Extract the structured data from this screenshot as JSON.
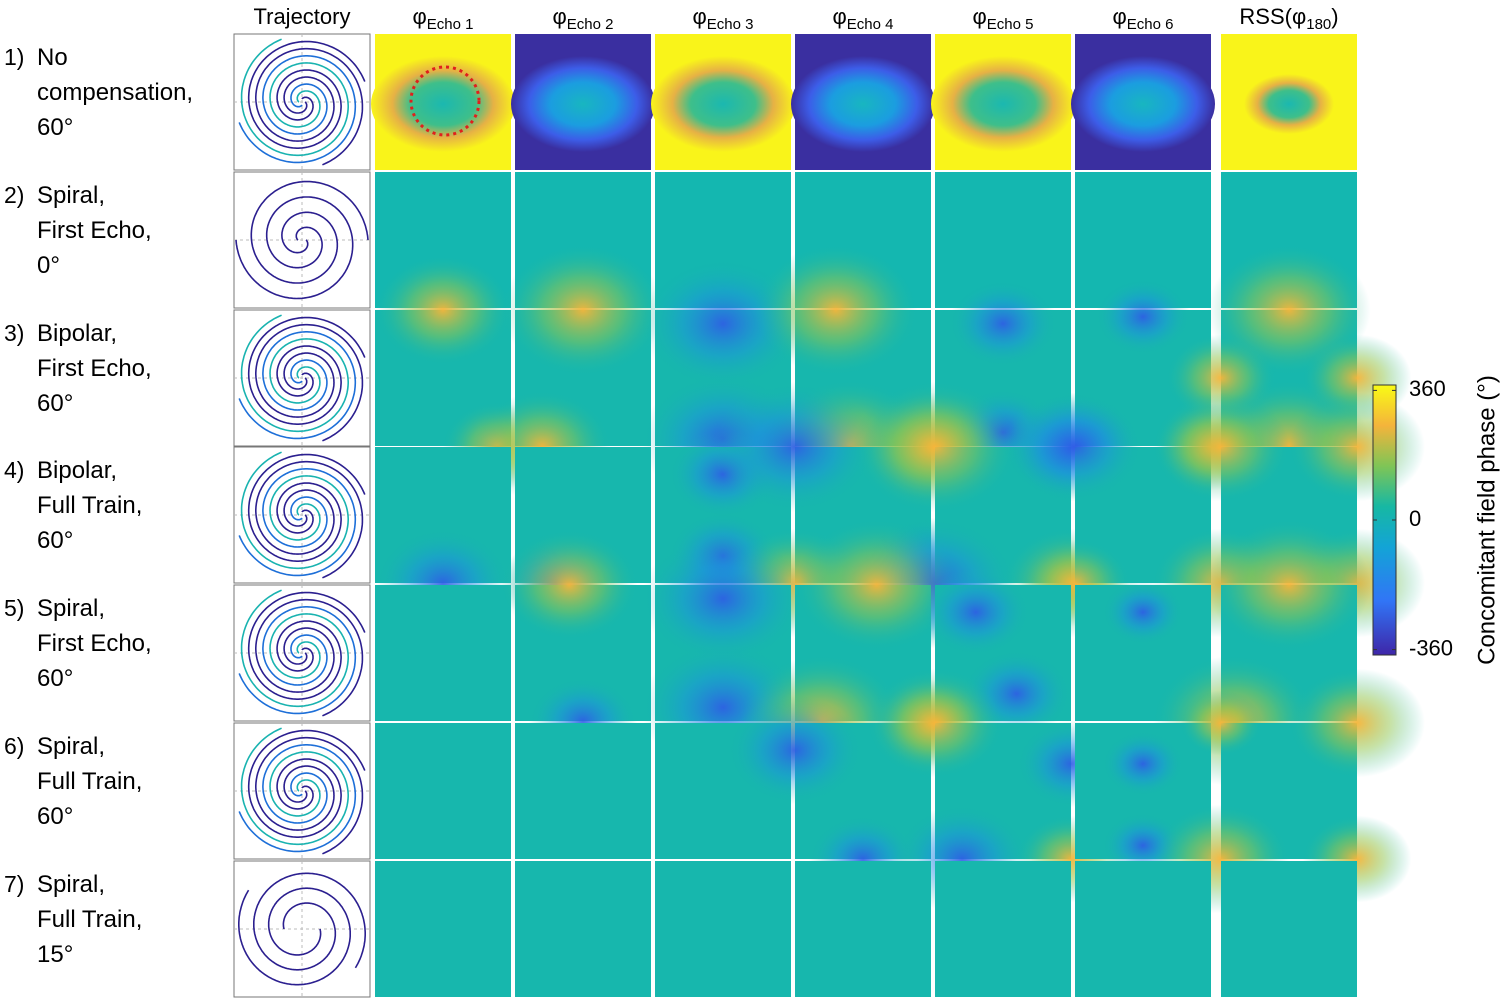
{
  "header": {
    "columns": [
      {
        "text": "Trajectory"
      },
      {
        "symbol": "φ",
        "sub": "Echo 1"
      },
      {
        "symbol": "φ",
        "sub": "Echo 2"
      },
      {
        "symbol": "φ",
        "sub": "Echo 3"
      },
      {
        "symbol": "φ",
        "sub": "Echo 4"
      },
      {
        "symbol": "φ",
        "sub": "Echo 5"
      },
      {
        "symbol": "φ",
        "sub": "Echo 6"
      },
      {
        "prefix": "RSS(φ",
        "sub": "180",
        "suffix": ")"
      }
    ]
  },
  "rows": [
    {
      "number": "1)",
      "lines": [
        "No",
        "compensation,",
        "60°"
      ]
    },
    {
      "number": "2)",
      "lines": [
        "Spiral,",
        "First Echo,",
        "0°"
      ]
    },
    {
      "number": "3)",
      "lines": [
        "Bipolar,",
        "First Echo,",
        "60°"
      ]
    },
    {
      "number": "4)",
      "lines": [
        "Bipolar,",
        "Full Train,",
        "60°"
      ]
    },
    {
      "number": "5)",
      "lines": [
        "Spiral,",
        "First Echo,",
        "60°"
      ]
    },
    {
      "number": "6)",
      "lines": [
        "Spiral,",
        "Full Train,",
        "60°"
      ]
    },
    {
      "number": "7)",
      "lines": [
        "Spiral,",
        "Full Train,",
        "15°"
      ]
    }
  ],
  "colorbar": {
    "label": "Concomitant field phase (°)",
    "lim": [
      -375,
      375
    ],
    "ticks": [
      360,
      0,
      -360
    ]
  }
}
